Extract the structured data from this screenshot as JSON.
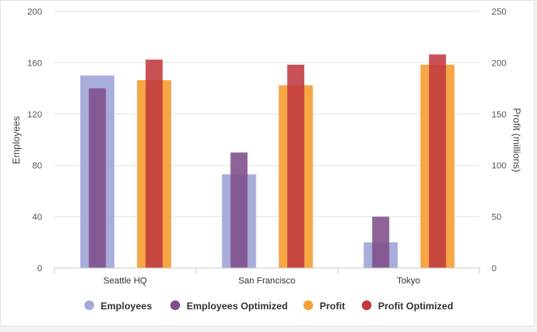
{
  "chart_data": {
    "type": "bar",
    "categories": [
      "Seattle HQ",
      "San Francisco",
      "Tokyo"
    ],
    "series": [
      {
        "name": "Employees",
        "axis": "left",
        "color": "#a3a9d9",
        "values": [
          150,
          73,
          20
        ]
      },
      {
        "name": "Employees Optimized",
        "axis": "left",
        "color": "#7e4e8a",
        "values": [
          140,
          90,
          40
        ]
      },
      {
        "name": "Profit",
        "axis": "right",
        "color": "#f7a13b",
        "values": [
          183,
          178,
          198
        ]
      },
      {
        "name": "Profit Optimized",
        "axis": "right",
        "color": "#c0393f",
        "values": [
          203,
          198,
          208
        ]
      }
    ],
    "ylabel": "Employees",
    "y2label": "Profit (millions)",
    "ylim": [
      0,
      200
    ],
    "y2lim": [
      0,
      250
    ],
    "yticks": [
      0,
      40,
      80,
      120,
      160,
      200
    ],
    "y2ticks": [
      0,
      50,
      100,
      150,
      200,
      250
    ],
    "grid": true,
    "legend_position": "bottom"
  }
}
